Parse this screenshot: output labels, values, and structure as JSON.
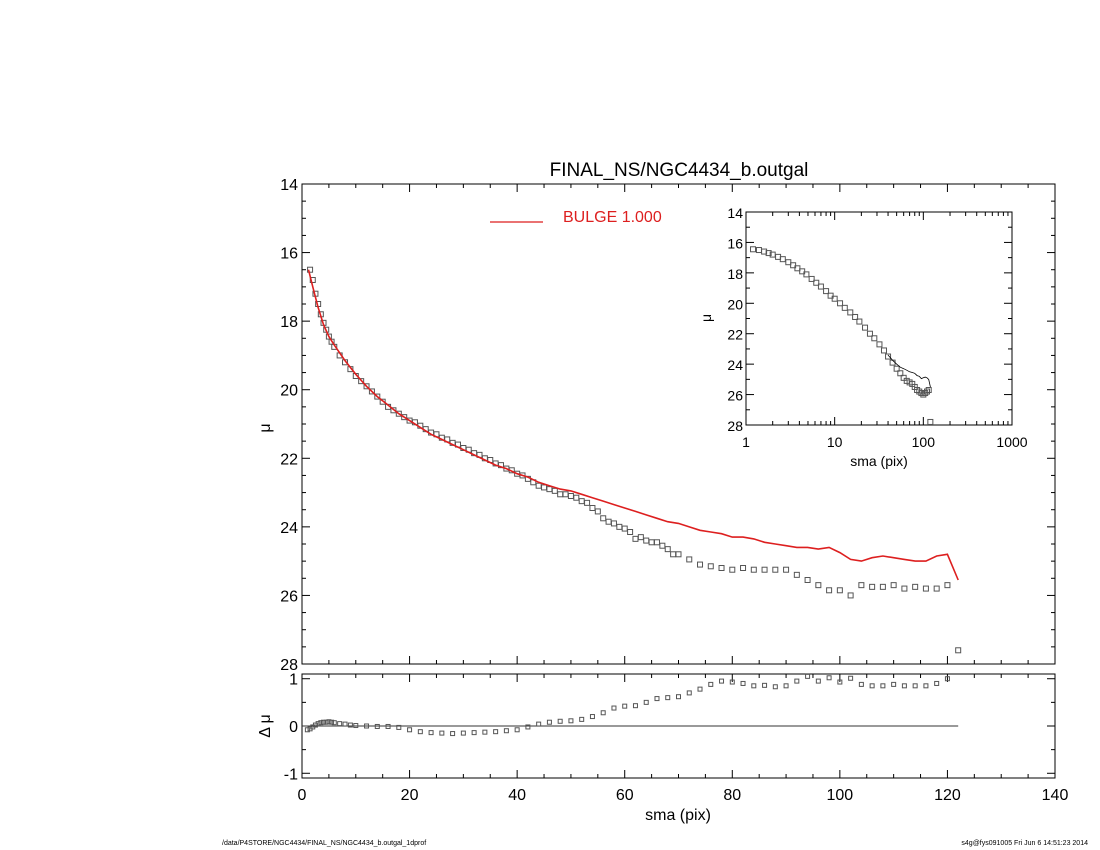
{
  "title": "FINAL_NS/NGC4434_b.outgal",
  "footer": {
    "left": "/data/P4STORE/NGC4434/FINAL_NS/NGC4434_b.outgal_1dprof",
    "right": "s4g@fys091005  Fri Jun  6 14:51:23 2014"
  },
  "colors": {
    "model": "#dd1f1f",
    "data": "#555555",
    "axis": "#000000"
  },
  "chart_data": [
    {
      "type": "scatter",
      "panel": "main",
      "title": "FINAL_NS/NGC4434_b.outgal",
      "xlabel": "",
      "ylabel": "μ",
      "xlim": [
        0,
        140
      ],
      "ylim": [
        28,
        14
      ],
      "y_inverted": true,
      "xticks": [
        0,
        20,
        40,
        60,
        80,
        100,
        120,
        140
      ],
      "yticks": [
        14,
        16,
        18,
        20,
        22,
        24,
        26,
        28
      ],
      "legend": {
        "placement": "top-center",
        "entries": [
          {
            "label": "BULGE  1.000",
            "color": "#dd1f1f"
          }
        ]
      },
      "series": [
        {
          "name": "BULGE  1.000",
          "kind": "line",
          "x": [
            1.2,
            2,
            3,
            4,
            5,
            6,
            8,
            10,
            12,
            14,
            16,
            18,
            20,
            22,
            24,
            26,
            28,
            30,
            32,
            34,
            36,
            38,
            40,
            42,
            44,
            46,
            48,
            50,
            52,
            54,
            56,
            58,
            60,
            62,
            64,
            66,
            68,
            70,
            72,
            74,
            76,
            78,
            80,
            82,
            84,
            86,
            88,
            90,
            92,
            94,
            96,
            98,
            100,
            102,
            104,
            106,
            108,
            110,
            112,
            114,
            116,
            118,
            120,
            122
          ],
          "y": [
            16.5,
            17.0,
            17.6,
            18.1,
            18.45,
            18.7,
            19.15,
            19.55,
            19.9,
            20.2,
            20.45,
            20.7,
            20.9,
            21.1,
            21.3,
            21.45,
            21.6,
            21.75,
            21.9,
            22.05,
            22.2,
            22.3,
            22.45,
            22.55,
            22.7,
            22.8,
            22.9,
            22.95,
            23.05,
            23.15,
            23.25,
            23.35,
            23.45,
            23.55,
            23.65,
            23.75,
            23.85,
            23.9,
            24.0,
            24.1,
            24.15,
            24.2,
            24.3,
            24.3,
            24.35,
            24.45,
            24.5,
            24.55,
            24.6,
            24.6,
            24.65,
            24.6,
            24.75,
            24.95,
            25.0,
            24.9,
            24.85,
            24.9,
            24.95,
            25.0,
            25.0,
            24.85,
            24.8,
            25.55
          ]
        },
        {
          "name": "",
          "kind": "points",
          "x": [
            1.5,
            2,
            2.5,
            3,
            3.5,
            4,
            4.5,
            5,
            5.5,
            6,
            7,
            8,
            9,
            10,
            11,
            12,
            13,
            14,
            15,
            16,
            17,
            18,
            19,
            20,
            21,
            22,
            23,
            24,
            25,
            26,
            27,
            28,
            29,
            30,
            31,
            32,
            33,
            34,
            35,
            36,
            37,
            38,
            39,
            40,
            41,
            42,
            43,
            44,
            45,
            46,
            47,
            48,
            49,
            50,
            51,
            52,
            53,
            54,
            55,
            56,
            57,
            58,
            59,
            60,
            61,
            62,
            63,
            64,
            65,
            66,
            67,
            68,
            69,
            70,
            72,
            74,
            76,
            78,
            80,
            82,
            84,
            86,
            88,
            90,
            92,
            94,
            96,
            98,
            100,
            102,
            104,
            106,
            108,
            110,
            112,
            114,
            116,
            118,
            120,
            122
          ],
          "y": [
            16.5,
            16.8,
            17.2,
            17.5,
            17.8,
            18.05,
            18.25,
            18.45,
            18.6,
            18.75,
            19.0,
            19.2,
            19.4,
            19.6,
            19.75,
            19.9,
            20.05,
            20.2,
            20.35,
            20.5,
            20.6,
            20.7,
            20.8,
            20.9,
            20.95,
            21.05,
            21.15,
            21.25,
            21.3,
            21.4,
            21.45,
            21.55,
            21.6,
            21.7,
            21.75,
            21.85,
            21.9,
            22.0,
            22.05,
            22.15,
            22.2,
            22.3,
            22.35,
            22.45,
            22.5,
            22.6,
            22.7,
            22.8,
            22.85,
            22.9,
            22.95,
            23.05,
            23.05,
            23.1,
            23.15,
            23.25,
            23.3,
            23.45,
            23.55,
            23.75,
            23.85,
            23.9,
            24.0,
            24.05,
            24.15,
            24.35,
            24.3,
            24.4,
            24.45,
            24.45,
            24.55,
            24.65,
            24.8,
            24.8,
            24.95,
            25.1,
            25.15,
            25.2,
            25.25,
            25.2,
            25.25,
            25.25,
            25.25,
            25.25,
            25.4,
            25.55,
            25.7,
            25.85,
            25.85,
            26.0,
            25.7,
            25.75,
            25.75,
            25.7,
            25.8,
            25.75,
            25.8,
            25.8,
            25.7,
            27.6
          ]
        }
      ]
    },
    {
      "type": "scatter",
      "panel": "residual",
      "xlabel": "sma (pix)",
      "ylabel": "Δ μ",
      "xlim": [
        0,
        140
      ],
      "ylim": [
        -1.1,
        1.1
      ],
      "xticks": [
        0,
        20,
        40,
        60,
        80,
        100,
        120,
        140
      ],
      "yticks": [
        -1,
        0,
        1
      ],
      "reference_line": {
        "y": 0,
        "from_x": 0,
        "to_x": 122
      },
      "series": [
        {
          "name": "",
          "kind": "points",
          "x": [
            1,
            1.5,
            2,
            2.5,
            3,
            3.5,
            4,
            4.5,
            5,
            5.5,
            6,
            7,
            8,
            9,
            10,
            12,
            14,
            16,
            18,
            20,
            22,
            24,
            26,
            28,
            30,
            32,
            34,
            36,
            38,
            40,
            42,
            44,
            46,
            48,
            50,
            52,
            54,
            56,
            58,
            60,
            62,
            64,
            66,
            68,
            70,
            72,
            74,
            76,
            78,
            80,
            82,
            84,
            86,
            88,
            90,
            92,
            94,
            96,
            98,
            100,
            102,
            104,
            106,
            108,
            110,
            112,
            114,
            116,
            118,
            120
          ],
          "y": [
            -0.08,
            -0.06,
            -0.02,
            0.02,
            0.05,
            0.07,
            0.08,
            0.08,
            0.09,
            0.08,
            0.07,
            0.05,
            0.04,
            0.02,
            0.01,
            0.0,
            -0.01,
            -0.01,
            -0.03,
            -0.08,
            -0.12,
            -0.14,
            -0.15,
            -0.16,
            -0.15,
            -0.14,
            -0.13,
            -0.12,
            -0.1,
            -0.08,
            -0.02,
            0.04,
            0.08,
            0.1,
            0.11,
            0.14,
            0.2,
            0.28,
            0.38,
            0.42,
            0.43,
            0.5,
            0.58,
            0.6,
            0.62,
            0.7,
            0.78,
            0.88,
            0.95,
            0.93,
            0.9,
            0.85,
            0.86,
            0.83,
            0.85,
            0.95,
            1.05,
            0.95,
            1.02,
            0.93,
            1.01,
            0.88,
            0.85,
            0.85,
            0.88,
            0.85,
            0.85,
            0.85,
            0.9,
            1.0
          ]
        }
      ]
    },
    {
      "type": "scatter",
      "panel": "inset",
      "xlabel": "sma (pix)",
      "ylabel": "μ",
      "xscale": "log",
      "xlim": [
        1,
        1000
      ],
      "ylim": [
        28,
        14
      ],
      "y_inverted": true,
      "xticks": [
        1,
        10,
        100,
        1000
      ],
      "xtick_labels": [
        "1",
        "10",
        "100",
        "1000"
      ],
      "yticks": [
        14,
        16,
        18,
        20,
        22,
        24,
        26,
        28
      ],
      "series": [
        {
          "name": "",
          "kind": "points",
          "x": [
            1.2,
            1.4,
            1.6,
            1.8,
            2,
            2.3,
            2.6,
            3,
            3.4,
            3.8,
            4.3,
            4.8,
            5.5,
            6.2,
            7,
            8,
            9,
            10,
            11.5,
            13,
            15,
            17,
            19,
            22,
            25,
            28,
            32,
            36,
            40,
            45,
            50,
            55,
            60,
            65,
            70,
            75,
            80,
            85,
            90,
            95,
            100,
            105,
            110,
            115,
            120
          ],
          "y": [
            16.45,
            16.5,
            16.6,
            16.7,
            16.8,
            16.95,
            17.1,
            17.3,
            17.5,
            17.7,
            17.9,
            18.1,
            18.4,
            18.65,
            18.9,
            19.2,
            19.5,
            19.7,
            20.0,
            20.3,
            20.6,
            20.9,
            21.2,
            21.6,
            22.0,
            22.3,
            22.7,
            23.1,
            23.5,
            23.9,
            24.3,
            24.6,
            24.9,
            25.1,
            25.2,
            25.3,
            25.5,
            25.7,
            25.8,
            25.9,
            26.0,
            25.9,
            25.8,
            25.7,
            27.8
          ]
        },
        {
          "name": "",
          "kind": "line",
          "x": [
            40,
            45,
            50,
            55,
            60,
            65,
            70,
            75,
            80,
            85,
            90,
            95,
            100,
            105,
            110,
            115,
            120
          ],
          "y": [
            23.4,
            23.75,
            24.0,
            24.2,
            24.3,
            24.4,
            24.5,
            24.55,
            24.6,
            24.75,
            24.8,
            24.95,
            24.9,
            24.85,
            24.9,
            25.0,
            25.5
          ]
        }
      ]
    }
  ]
}
